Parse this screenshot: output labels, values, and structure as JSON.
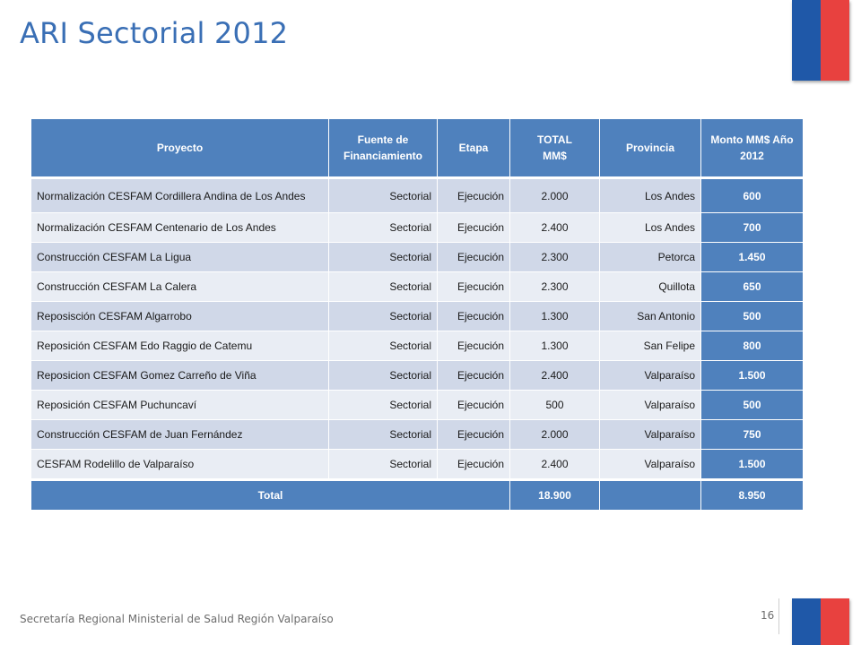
{
  "title": "ARI Sectorial 2012",
  "table": {
    "headers": {
      "proyecto": "Proyecto",
      "fuente_line1": "Fuente de",
      "fuente_line2": "Financiamiento",
      "etapa": "Etapa",
      "total_line1": "TOTAL",
      "total_line2": "MM$",
      "provincia": "Provincia",
      "monto_line1": "Monto MM$  Año",
      "monto_line2": "2012"
    },
    "rows": [
      {
        "proyecto": "Normalización CESFAM Cordillera Andina de Los Andes",
        "fuente": "Sectorial",
        "etapa": "Ejecución",
        "total": "2.000",
        "provincia": "Los Andes",
        "monto": "600"
      },
      {
        "proyecto": "Normalización CESFAM Centenario de Los Andes",
        "fuente": "Sectorial",
        "etapa": "Ejecución",
        "total": "2.400",
        "provincia": "Los Andes",
        "monto": "700"
      },
      {
        "proyecto": "Construcción CESFAM La Ligua",
        "fuente": "Sectorial",
        "etapa": "Ejecución",
        "total": "2.300",
        "provincia": "Petorca",
        "monto": "1.450"
      },
      {
        "proyecto": "Construcción CESFAM La Calera",
        "fuente": "Sectorial",
        "etapa": "Ejecución",
        "total": "2.300",
        "provincia": "Quillota",
        "monto": "650"
      },
      {
        "proyecto": "Reposisción CESFAM Algarrobo",
        "fuente": "Sectorial",
        "etapa": "Ejecución",
        "total": "1.300",
        "provincia": "San Antonio",
        "monto": "500"
      },
      {
        "proyecto": "Reposición CESFAM Edo Raggio de Catemu",
        "fuente": "Sectorial",
        "etapa": "Ejecución",
        "total": "1.300",
        "provincia": "San Felipe",
        "monto": "800"
      },
      {
        "proyecto": "Reposicion CESFAM Gomez Carreño de Viña",
        "fuente": "Sectorial",
        "etapa": "Ejecución",
        "total": "2.400",
        "provincia": "Valparaíso",
        "monto": "1.500"
      },
      {
        "proyecto": "Reposición CESFAM Puchuncaví",
        "fuente": "Sectorial",
        "etapa": "Ejecución",
        "total": "500",
        "provincia": "Valparaíso",
        "monto": "500"
      },
      {
        "proyecto": "Construcción CESFAM de Juan Fernández",
        "fuente": "Sectorial",
        "etapa": "Ejecución",
        "total": "2.000",
        "provincia": "Valparaíso",
        "monto": "750"
      },
      {
        "proyecto": "CESFAM Rodelillo de Valparaíso",
        "fuente": "Sectorial",
        "etapa": "Ejecución",
        "total": "2.400",
        "provincia": "Valparaíso",
        "monto": "1.500"
      }
    ],
    "footer": {
      "label": "Total",
      "total": "18.900",
      "monto": "8.950"
    }
  },
  "footer": {
    "institution": "Secretaría Regional Ministerial de Salud Región Valparaíso",
    "page_number": "16"
  },
  "colors": {
    "accent_blue": "#4f81bd",
    "title_blue": "#3a6fb5",
    "flag_blue": "#1f58a8",
    "flag_red": "#e8413f"
  }
}
